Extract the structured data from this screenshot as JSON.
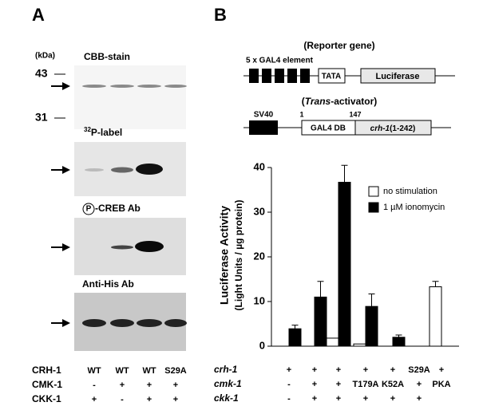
{
  "panel_a": {
    "label": "A",
    "kda": "(kDa)",
    "markers": [
      43,
      31
    ],
    "blots": [
      {
        "title": "CBB-stain"
      },
      {
        "sup": "32",
        "title": "P-label"
      },
      {
        "circled": "P",
        "title": "-CREB Ab"
      },
      {
        "title": "Anti-His Ab"
      }
    ],
    "table": {
      "rows": [
        {
          "label": "CRH-1",
          "cells": [
            "WT",
            "WT",
            "WT",
            "S29A"
          ]
        },
        {
          "label": "CMK-1",
          "cells": [
            "-",
            "+",
            "+",
            "+"
          ]
        },
        {
          "label": "CKK-1",
          "cells": [
            "+",
            "-",
            "+",
            "+"
          ]
        }
      ]
    }
  },
  "panel_b": {
    "label": "B",
    "reporter": {
      "title": "(Reporter gene)",
      "element": "5 x GAL4 element",
      "tata": "TATA",
      "luciferase": "Luciferase"
    },
    "transactivator": {
      "title": [
        "(",
        "Trans",
        "-activator)"
      ],
      "promoter": "SV40",
      "start": 1,
      "end": 147,
      "dbd": "GAL4 DB",
      "fusion": [
        "crh-1",
        "(1-242)"
      ]
    },
    "table": {
      "rows": [
        {
          "label": "crh-1",
          "cells": [
            "+",
            "+",
            "+",
            "+",
            "+",
            "S29A",
            "+"
          ]
        },
        {
          "label": "cmk-1",
          "cells": [
            "-",
            "+",
            "+",
            "T179A",
            "K52A",
            "+",
            "PKA"
          ]
        },
        {
          "label": "ckk-1",
          "cells": [
            "-",
            "+",
            "+",
            "+",
            "+",
            "+",
            null
          ]
        }
      ]
    }
  },
  "chart_data": {
    "type": "bar",
    "ylabel": "Luciferase Activity",
    "ylabel_sub": "(Light Units / µg protein)",
    "categories": [
      null,
      null,
      null,
      null,
      null,
      null,
      null
    ],
    "series": [
      {
        "name": "no stimulation",
        "color": "#ffffff",
        "values": [
          0,
          0,
          1.8,
          0.5,
          0,
          0,
          13.3
        ],
        "errors": [
          null,
          null,
          null,
          null,
          null,
          null,
          1.2
        ]
      },
      {
        "name": "1 µM ionomycin",
        "color": "#000000",
        "values": [
          3.9,
          11,
          36.7,
          8.9,
          2,
          0,
          null
        ],
        "errors": [
          0.8,
          3.5,
          3.8,
          2.8,
          0.5,
          null,
          null
        ]
      }
    ],
    "ylim": [
      0,
      40
    ],
    "yticks": [
      0,
      10,
      20,
      30,
      40
    ],
    "legend": "upper right"
  }
}
